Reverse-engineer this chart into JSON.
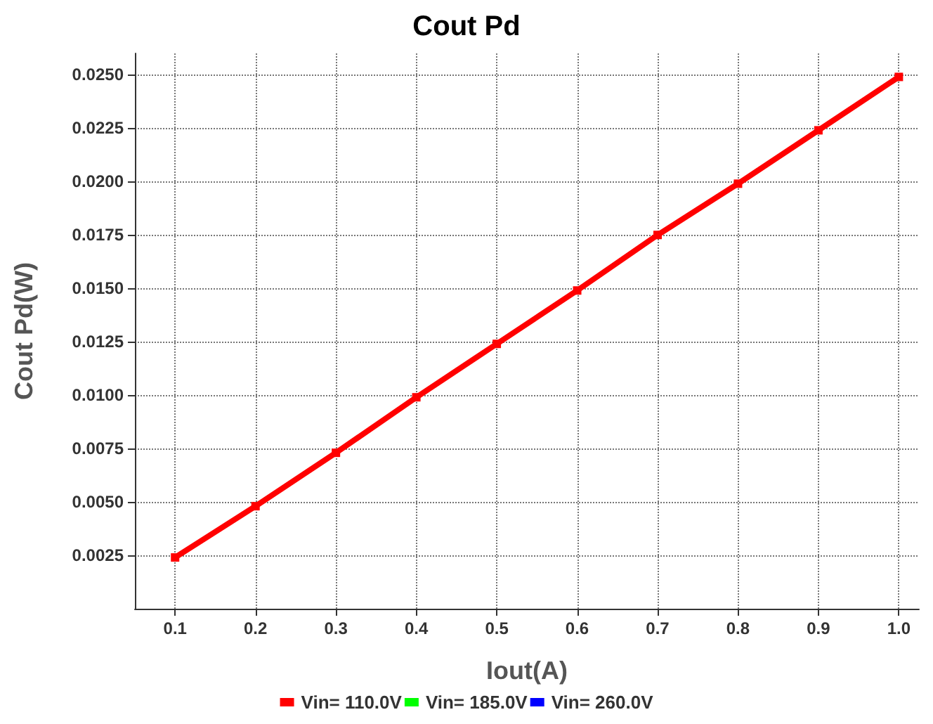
{
  "chart_data": {
    "type": "line",
    "title": "Cout Pd",
    "xlabel": "Iout(A)",
    "ylabel": "Cout Pd(W)",
    "x": [
      0.1,
      0.2,
      0.3,
      0.4,
      0.5,
      0.6,
      0.7,
      0.8,
      0.9,
      1.0
    ],
    "series": [
      {
        "name": "Vin= 110.0V",
        "color": "#ff0000",
        "values": [
          0.0024,
          0.0048,
          0.0073,
          0.0099,
          0.0124,
          0.0149,
          0.0175,
          0.0199,
          0.0224,
          0.0249
        ]
      },
      {
        "name": "Vin= 185.0V",
        "color": "#00ff00",
        "values": [
          null,
          null,
          null,
          null,
          null,
          null,
          null,
          null,
          null,
          null
        ]
      },
      {
        "name": "Vin= 260.0V",
        "color": "#0000ff",
        "values": [
          null,
          null,
          null,
          null,
          null,
          null,
          null,
          null,
          null,
          null
        ]
      }
    ],
    "xlim": [
      0.05,
      1.025
    ],
    "xticks": [
      0.1,
      0.2,
      0.3,
      0.4,
      0.5,
      0.6,
      0.7,
      0.8,
      0.9,
      {
        "value": 1.0,
        "label": "1.0"
      }
    ],
    "ylim": [
      0,
      0.026
    ],
    "yticks": [
      {
        "value": 0.0025,
        "label": "0.0025"
      },
      {
        "value": 0.005,
        "label": "0.0050"
      },
      {
        "value": 0.0075,
        "label": "0.0075"
      },
      {
        "value": 0.01,
        "label": "0.0100"
      },
      {
        "value": 0.0125,
        "label": "0.0125"
      },
      {
        "value": 0.015,
        "label": "0.0150"
      },
      {
        "value": 0.0175,
        "label": "0.0175"
      },
      {
        "value": 0.02,
        "label": "0.0200"
      },
      {
        "value": 0.0225,
        "label": "0.0225"
      },
      {
        "value": 0.025,
        "label": "0.0250"
      }
    ],
    "grid": true,
    "legend": "bottom",
    "marker": "square",
    "line_style": "solid"
  }
}
